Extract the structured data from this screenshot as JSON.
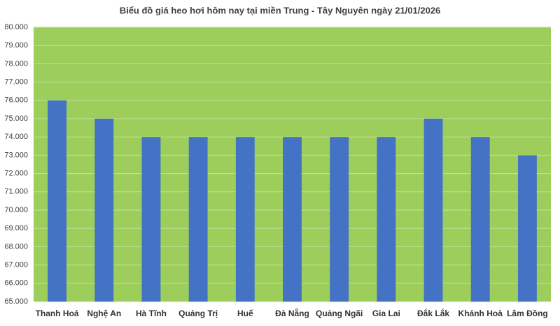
{
  "chart_data": {
    "type": "bar",
    "title": "Biểu đồ giá heo hơi hôm nay tại miền Trung - Tây Nguyên ngày 21/01/2026",
    "categories": [
      "Thanh Hoá",
      "Nghệ An",
      "Hà Tĩnh",
      "Quảng Trị",
      "Huế",
      "Đà Nẵng",
      "Quảng Ngãi",
      "Gia Lai",
      "Đắk Lắk",
      "Khánh Hoà",
      "Lâm Đồng"
    ],
    "values": [
      76000,
      75000,
      74000,
      74000,
      74000,
      74000,
      74000,
      74000,
      75000,
      74000,
      73000
    ],
    "color": "#4472c4",
    "plot_color": "#9dcd5b",
    "ylim": [
      65000,
      80000
    ],
    "yticks": [
      {
        "value": 65000,
        "label": "65.000"
      },
      {
        "value": 66000,
        "label": "66.000"
      },
      {
        "value": 67000,
        "label": "67.000"
      },
      {
        "value": 68000,
        "label": "68.000"
      },
      {
        "value": 69000,
        "label": "69.000"
      },
      {
        "value": 70000,
        "label": "70.000"
      },
      {
        "value": 71000,
        "label": "71.000"
      },
      {
        "value": 72000,
        "label": "72.000"
      },
      {
        "value": 73000,
        "label": "73.000"
      },
      {
        "value": 74000,
        "label": "74.000"
      },
      {
        "value": 75000,
        "label": "75.000"
      },
      {
        "value": 76000,
        "label": "76.000"
      },
      {
        "value": 77000,
        "label": "77.000"
      },
      {
        "value": 78000,
        "label": "78.000"
      },
      {
        "value": 79000,
        "label": "79.000"
      },
      {
        "value": 80000,
        "label": "80.000"
      }
    ],
    "grid": true
  }
}
